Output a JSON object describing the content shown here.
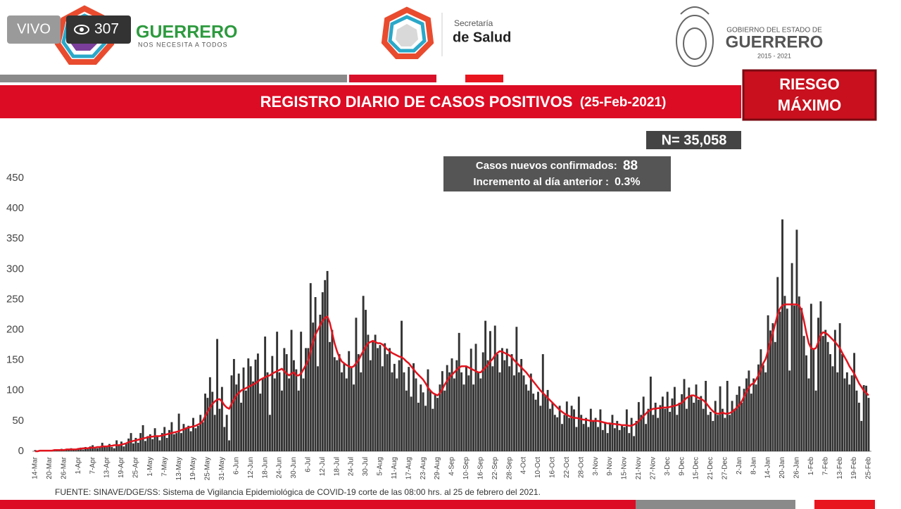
{
  "overlay": {
    "live": "VIVO",
    "viewers": "307"
  },
  "header": {
    "left": {
      "title": "GUERRERO",
      "subtitle": "NOS NECESITA A TODOS"
    },
    "center": {
      "line1": "Secretaría",
      "line2": "de Salud"
    },
    "right": {
      "line1": "GOBIERNO DEL ESTADO DE",
      "line2": "GUERRERO",
      "line3": "2015 - 2021"
    }
  },
  "risk": {
    "line1": "RIESGO",
    "line2": "MÁXIMO"
  },
  "stats": {
    "total": "N= 35,058",
    "new_label": "Casos nuevos confirmados:",
    "new_value": "88",
    "increment_label": "Incremento al día anterior :",
    "increment_value": "0.3%"
  },
  "source": "FUENTE: SINAVE/DGE/SS: Sistema de Vigilancia Epidemiológica de COVID-19 corte de las 08:00 hrs. al 25 de febrero del 2021.",
  "chart_data": {
    "type": "bar",
    "title": "REGISTRO DIARIO DE CASOS POSITIVOS",
    "subtitle": "(25-Feb-2021)",
    "color": "#333333",
    "line_color": "#e3141e",
    "ylim": [
      0,
      450
    ],
    "yticks": [
      0,
      50,
      100,
      150,
      200,
      250,
      300,
      350,
      400,
      450
    ],
    "grid": false,
    "categories": [
      "14-Mar",
      null,
      null,
      null,
      null,
      null,
      "20-Mar",
      null,
      null,
      null,
      null,
      null,
      "26-Mar",
      null,
      null,
      null,
      null,
      null,
      "1-Apr",
      null,
      null,
      null,
      null,
      null,
      "7-Apr",
      null,
      null,
      null,
      null,
      null,
      "13-Apr",
      null,
      null,
      null,
      null,
      null,
      "19-Apr",
      null,
      null,
      null,
      null,
      null,
      "25-Apr",
      null,
      null,
      null,
      null,
      null,
      "1-May",
      null,
      null,
      null,
      null,
      null,
      "7-May",
      null,
      null,
      null,
      null,
      null,
      "13-May",
      null,
      null,
      null,
      null,
      null,
      "19-May",
      null,
      null,
      null,
      null,
      null,
      "25-May",
      null,
      null,
      null,
      null,
      null,
      "31-May",
      null,
      null,
      null,
      null,
      null,
      "6-Jun",
      null,
      null,
      null,
      null,
      null,
      "12-Jun",
      null,
      null,
      null,
      null,
      null,
      "18-Jun",
      null,
      null,
      null,
      null,
      null,
      "24-Jun",
      null,
      null,
      null,
      null,
      null,
      "30-Jun",
      null,
      null,
      null,
      null,
      null,
      "6-Jul",
      null,
      null,
      null,
      null,
      null,
      "12-Jul",
      null,
      null,
      null,
      null,
      null,
      "18-Jul",
      null,
      null,
      null,
      null,
      null,
      "24-Jul",
      null,
      null,
      null,
      null,
      null,
      "30-Jul",
      null,
      null,
      null,
      null,
      null,
      "5-Aug",
      null,
      null,
      null,
      null,
      null,
      "11-Aug",
      null,
      null,
      null,
      null,
      null,
      "17-Aug",
      null,
      null,
      null,
      null,
      null,
      "23-Aug",
      null,
      null,
      null,
      null,
      null,
      "29-Aug",
      null,
      null,
      null,
      null,
      null,
      "4-Sep",
      null,
      null,
      null,
      null,
      null,
      "10-Sep",
      null,
      null,
      null,
      null,
      null,
      "16-Sep",
      null,
      null,
      null,
      null,
      null,
      "22-Sep",
      null,
      null,
      null,
      null,
      null,
      "28-Sep",
      null,
      null,
      null,
      null,
      null,
      "4-Oct",
      null,
      null,
      null,
      null,
      null,
      "10-Oct",
      null,
      null,
      null,
      null,
      null,
      "16-Oct",
      null,
      null,
      null,
      null,
      null,
      "22-Oct",
      null,
      null,
      null,
      null,
      null,
      "28-Oct",
      null,
      null,
      null,
      null,
      null,
      "3-Nov",
      null,
      null,
      null,
      null,
      null,
      "9-Nov",
      null,
      null,
      null,
      null,
      null,
      "15-Nov",
      null,
      null,
      null,
      null,
      null,
      "21-Nov",
      null,
      null,
      null,
      null,
      null,
      "27-Nov",
      null,
      null,
      null,
      null,
      null,
      "3-Dec",
      null,
      null,
      null,
      null,
      null,
      "9-Dec",
      null,
      null,
      null,
      null,
      null,
      "15-Dec",
      null,
      null,
      null,
      null,
      null,
      "21-Dec",
      null,
      null,
      null,
      null,
      null,
      "27-Dec",
      null,
      null,
      null,
      null,
      null,
      "2-Jan",
      null,
      null,
      null,
      null,
      null,
      "8-Jan",
      null,
      null,
      null,
      null,
      null,
      "14-Jan",
      null,
      null,
      null,
      null,
      null,
      "20-Jan",
      null,
      null,
      null,
      null,
      null,
      "26-Jan",
      null,
      null,
      null,
      null,
      null,
      "1-Feb",
      null,
      null,
      null,
      null,
      null,
      "7-Feb",
      null,
      null,
      null,
      null,
      null,
      "13-Feb",
      null,
      null,
      null,
      null,
      null,
      "19-Feb",
      null,
      null,
      null,
      null,
      null,
      "25-Feb"
    ],
    "values": [
      2,
      0,
      0,
      0,
      1,
      1,
      1,
      2,
      3,
      1,
      2,
      4,
      3,
      2,
      4,
      5,
      2,
      3,
      5,
      6,
      3,
      7,
      4,
      8,
      10,
      6,
      5,
      8,
      14,
      7,
      9,
      12,
      7,
      5,
      18,
      10,
      16,
      8,
      12,
      21,
      30,
      13,
      22,
      14,
      30,
      43,
      17,
      25,
      28,
      20,
      38,
      24,
      18,
      30,
      40,
      22,
      35,
      48,
      28,
      30,
      62,
      30,
      45,
      38,
      42,
      33,
      55,
      38,
      42,
      60,
      48,
      95,
      88,
      122,
      98,
      60,
      185,
      70,
      106,
      40,
      60,
      18,
      125,
      152,
      110,
      128,
      80,
      138,
      100,
      153,
      140,
      115,
      151,
      161,
      95,
      120,
      189,
      130,
      60,
      157,
      120,
      197,
      130,
      100,
      170,
      160,
      120,
      200,
      150,
      135,
      100,
      197,
      120,
      170,
      170,
      277,
      212,
      254,
      140,
      225,
      262,
      282,
      297,
      180,
      200,
      155,
      150,
      160,
      130,
      145,
      120,
      165,
      140,
      110,
      220,
      160,
      130,
      256,
      233,
      192,
      150,
      180,
      192,
      170,
      175,
      140,
      178,
      160,
      170,
      130,
      144,
      120,
      150,
      215,
      130,
      100,
      139,
      90,
      145,
      120,
      80,
      110,
      97,
      75,
      135,
      100,
      70,
      95,
      88,
      110,
      132,
      100,
      142,
      130,
      153,
      120,
      150,
      195,
      130,
      110,
      140,
      125,
      169,
      110,
      177,
      130,
      120,
      163,
      215,
      150,
      198,
      140,
      207,
      160,
      130,
      170,
      150,
      169,
      140,
      160,
      125,
      205,
      130,
      152,
      125,
      110,
      100,
      128,
      95,
      85,
      98,
      75,
      160,
      92,
      101,
      70,
      80,
      60,
      56,
      75,
      45,
      60,
      82,
      55,
      75,
      69,
      40,
      90,
      60,
      45,
      55,
      40,
      70,
      50,
      55,
      40,
      69,
      35,
      48,
      30,
      45,
      60,
      38,
      50,
      35,
      42,
      40,
      69,
      30,
      55,
      25,
      50,
      81,
      60,
      90,
      45,
      70,
      123,
      60,
      80,
      55,
      76,
      90,
      70,
      98,
      65,
      87,
      106,
      60,
      80,
      94,
      119,
      70,
      105,
      91,
      80,
      110,
      85,
      91,
      70,
      116,
      60,
      65,
      50,
      83,
      60,
      107,
      70,
      55,
      116,
      60,
      83,
      70,
      93,
      107,
      80,
      103,
      120,
      133,
      95,
      120,
      110,
      143,
      168,
      142,
      130,
      224,
      199,
      211,
      180,
      287,
      230,
      382,
      256,
      235,
      133,
      310,
      240,
      365,
      255,
      236,
      190,
      158,
      120,
      243,
      170,
      100,
      220,
      247,
      190,
      200,
      180,
      160,
      140,
      200,
      130,
      211,
      160,
      120,
      130,
      110,
      125,
      162,
      100,
      80,
      50,
      109,
      108,
      88
    ],
    "line_values": [
      0,
      0,
      1,
      1,
      1,
      1,
      1,
      1,
      2,
      2,
      2,
      2,
      2,
      3,
      3,
      3,
      3,
      3,
      4,
      4,
      5,
      5,
      5,
      6,
      6,
      6,
      7,
      7,
      8,
      8,
      8,
      9,
      9,
      10,
      10,
      10,
      11,
      12,
      13,
      15,
      16,
      17,
      18,
      19,
      20,
      21,
      22,
      23,
      24,
      24,
      25,
      25,
      25,
      26,
      27,
      28,
      29,
      30,
      31,
      32,
      33,
      35,
      36,
      38,
      39,
      40,
      41,
      42,
      44,
      46,
      50,
      58,
      65,
      72,
      78,
      82,
      85,
      86,
      82,
      76,
      72,
      70,
      78,
      85,
      92,
      96,
      100,
      102,
      104,
      106,
      108,
      110,
      112,
      115,
      118,
      120,
      122,
      124,
      125,
      128,
      130,
      132,
      134,
      136,
      132,
      128,
      125,
      128,
      130,
      125,
      125,
      128,
      135,
      142,
      150,
      165,
      180,
      192,
      200,
      208,
      215,
      220,
      222,
      212,
      195,
      178,
      165,
      155,
      148,
      145,
      142,
      140,
      138,
      140,
      145,
      150,
      158,
      165,
      172,
      178,
      180,
      182,
      180,
      178,
      178,
      176,
      172,
      168,
      165,
      162,
      160,
      158,
      156,
      155,
      152,
      148,
      145,
      140,
      135,
      130,
      126,
      122,
      118,
      112,
      105,
      100,
      96,
      94,
      92,
      96,
      102,
      110,
      116,
      122,
      126,
      130,
      134,
      138,
      140,
      140,
      140,
      138,
      136,
      134,
      132,
      130,
      130,
      134,
      138,
      142,
      148,
      152,
      158,
      162,
      165,
      164,
      162,
      160,
      158,
      155,
      150,
      146,
      142,
      138,
      134,
      130,
      125,
      120,
      115,
      110,
      105,
      100,
      96,
      92,
      88,
      84,
      80,
      76,
      72,
      68,
      65,
      62,
      60,
      58,
      56,
      55,
      55,
      54,
      53,
      52,
      52,
      51,
      50,
      50,
      50,
      50,
      49,
      48,
      47,
      46,
      46,
      45,
      45,
      44,
      44,
      43,
      43,
      43,
      42,
      42,
      44,
      46,
      50,
      54,
      58,
      62,
      66,
      68,
      70,
      70,
      71,
      71,
      72,
      72,
      72,
      73,
      74,
      75,
      76,
      78,
      80,
      84,
      88,
      90,
      92,
      92,
      90,
      88,
      86,
      84,
      80,
      75,
      70,
      66,
      63,
      62,
      62,
      64,
      62,
      62,
      63,
      65,
      68,
      72,
      76,
      82,
      90,
      98,
      105,
      110,
      112,
      118,
      125,
      135,
      145,
      152,
      165,
      180,
      195,
      210,
      225,
      235,
      240,
      242,
      242,
      242,
      242,
      242,
      242,
      240,
      232,
      215,
      195,
      178,
      170,
      168,
      170,
      180,
      192,
      196,
      195,
      192,
      188,
      184,
      180,
      175,
      170,
      162,
      155,
      148,
      140,
      134,
      128,
      120,
      112,
      106,
      100,
      96,
      92
    ]
  }
}
